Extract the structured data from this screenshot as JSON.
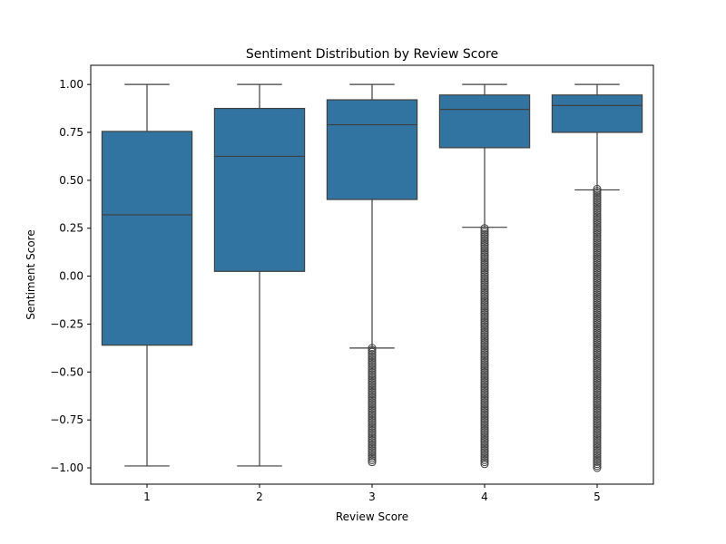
{
  "chart_data": {
    "type": "box",
    "title": "Sentiment Distribution by Review Score",
    "xlabel": "Review Score",
    "ylabel": "Sentiment Score",
    "categories": [
      "1",
      "2",
      "3",
      "4",
      "5"
    ],
    "ylim": [
      -1.085,
      1.1
    ],
    "yticks": [
      -1.0,
      -0.75,
      -0.5,
      -0.25,
      0.0,
      0.25,
      0.5,
      0.75,
      1.0
    ],
    "ytick_labels": [
      "−1.00",
      "−0.75",
      "−0.50",
      "−0.25",
      "0.00",
      "0.25",
      "0.50",
      "0.75",
      "1.00"
    ],
    "grid": false,
    "legend": "none",
    "box_color": "#3274a1",
    "line_color": "#3f3f3f",
    "boxes": [
      {
        "category": "1",
        "whisker_low": -0.99,
        "q1": -0.36,
        "median": 0.32,
        "q3": 0.755,
        "whisker_high": 1.0,
        "outlier_min": null,
        "outlier_max": null
      },
      {
        "category": "2",
        "whisker_low": -0.99,
        "q1": 0.025,
        "median": 0.625,
        "q3": 0.875,
        "whisker_high": 1.0,
        "outlier_min": null,
        "outlier_max": null
      },
      {
        "category": "3",
        "whisker_low": -0.375,
        "q1": 0.4,
        "median": 0.79,
        "q3": 0.92,
        "whisker_high": 1.0,
        "outlier_min": -0.97,
        "outlier_max": -0.375
      },
      {
        "category": "4",
        "whisker_low": 0.255,
        "q1": 0.67,
        "median": 0.87,
        "q3": 0.945,
        "whisker_high": 1.0,
        "outlier_min": -0.98,
        "outlier_max": 0.25
      },
      {
        "category": "5",
        "whisker_low": 0.45,
        "q1": 0.75,
        "median": 0.89,
        "q3": 0.945,
        "whisker_high": 1.0,
        "outlier_min": -1.0,
        "outlier_max": 0.455
      }
    ]
  }
}
